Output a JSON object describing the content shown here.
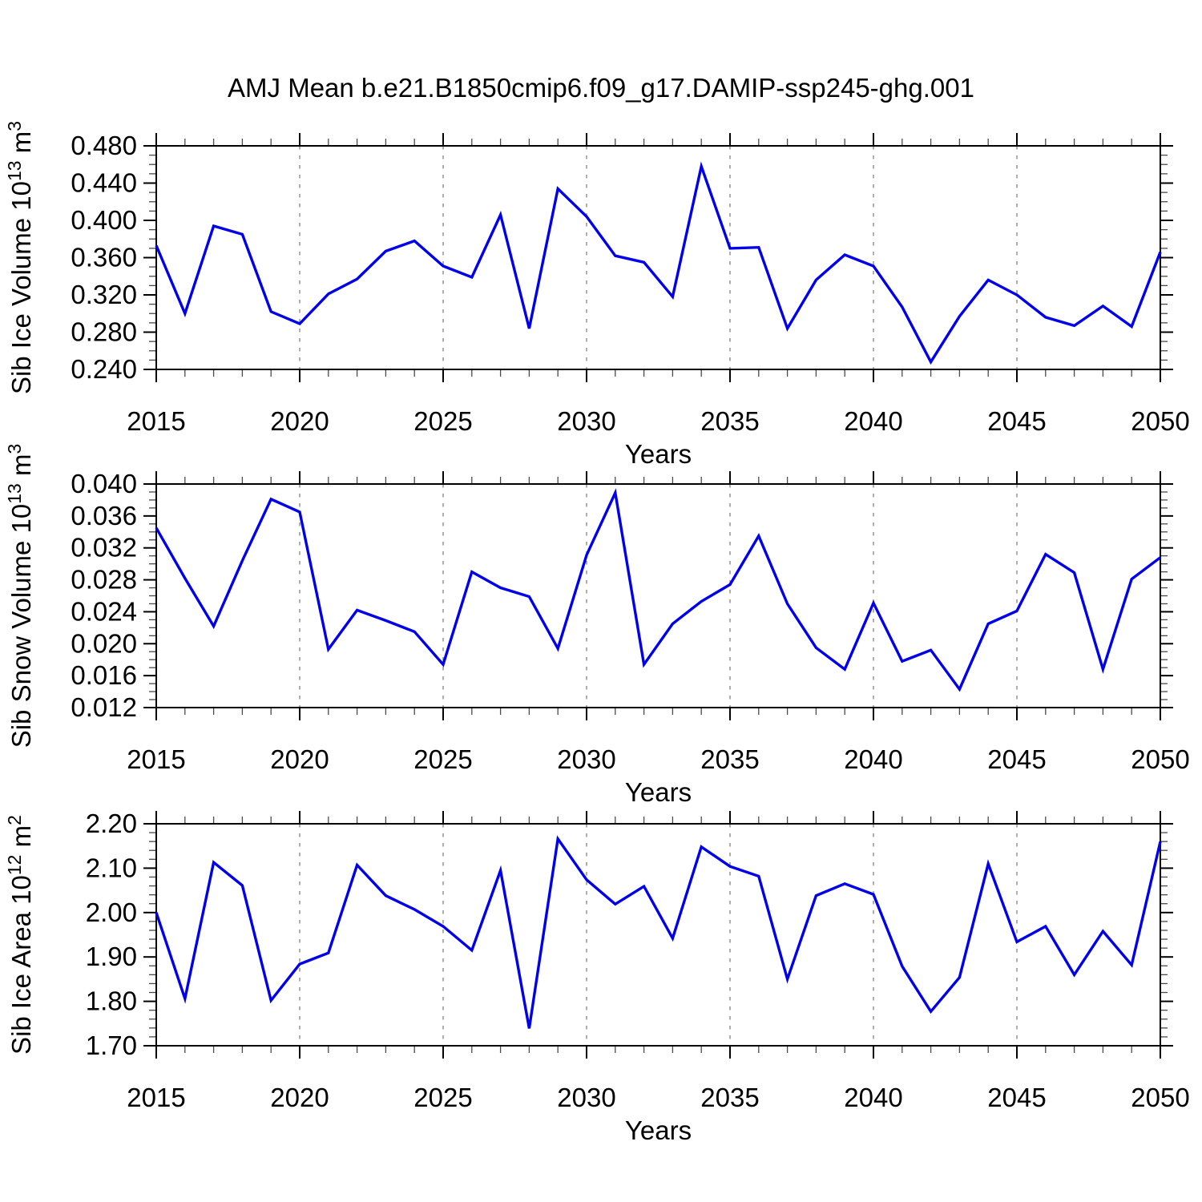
{
  "title": "AMJ Mean b.e21.B1850cmip6.f09_g17.DAMIP-ssp245-ghg.001",
  "style": {
    "line_color": "#0000ee",
    "grid_color": "#8a8a8a",
    "axis_color": "#000000",
    "background": "#ffffff"
  },
  "x_axis": {
    "label": "Years",
    "range": [
      2015,
      2050
    ],
    "major_ticks": [
      2015,
      2020,
      2025,
      2030,
      2035,
      2040,
      2045,
      2050
    ],
    "grid_years": [
      2020,
      2025,
      2030,
      2035,
      2040,
      2045
    ],
    "minor_step": 1,
    "years": [
      2015,
      2016,
      2017,
      2018,
      2019,
      2020,
      2021,
      2022,
      2023,
      2024,
      2025,
      2026,
      2027,
      2028,
      2029,
      2030,
      2031,
      2032,
      2033,
      2034,
      2035,
      2036,
      2037,
      2038,
      2039,
      2040,
      2041,
      2042,
      2043,
      2044,
      2045,
      2046,
      2047,
      2048,
      2049,
      2050
    ]
  },
  "chart_data": [
    {
      "type": "line",
      "name": "sib-ice-volume",
      "ylabel": "Sib Ice Volume 10¹³ m³",
      "ylabel_parts": [
        [
          "Sib Ice Volume 10",
          false
        ],
        [
          "13",
          true
        ],
        [
          " m",
          false
        ],
        [
          "3",
          true
        ]
      ],
      "ylim": [
        0.24,
        0.48
      ],
      "ytick_values": [
        0.24,
        0.28,
        0.32,
        0.36,
        0.4,
        0.44,
        0.48
      ],
      "ytick_labels": [
        "0.240",
        "0.280",
        "0.320",
        "0.360",
        "0.400",
        "0.440",
        "0.480"
      ],
      "y_minor_step": 0.01,
      "values": [
        0.373,
        0.3,
        0.394,
        0.385,
        0.302,
        0.289,
        0.321,
        0.337,
        0.367,
        0.378,
        0.351,
        0.339,
        0.406,
        0.284,
        0.434,
        0.404,
        0.362,
        0.355,
        0.318,
        0.458,
        0.37,
        0.371,
        0.284,
        0.336,
        0.363,
        0.351,
        0.307,
        0.248,
        0.297,
        0.336,
        0.32,
        0.296,
        0.287,
        0.308,
        0.286,
        0.366
      ]
    },
    {
      "type": "line",
      "name": "sib-snow-volume",
      "ylabel": "Sib Snow Volume 10¹³ m³",
      "ylabel_parts": [
        [
          "Sib Snow Volume 10",
          false
        ],
        [
          "13",
          true
        ],
        [
          " m",
          false
        ],
        [
          "3",
          true
        ]
      ],
      "ylim": [
        0.012,
        0.04
      ],
      "ytick_values": [
        0.012,
        0.016,
        0.02,
        0.024,
        0.028,
        0.032,
        0.036,
        0.04
      ],
      "ytick_labels": [
        "0.012",
        "0.016",
        "0.020",
        "0.024",
        "0.028",
        "0.032",
        "0.036",
        "0.040"
      ],
      "y_minor_step": 0.001,
      "values": [
        0.0345,
        0.0282,
        0.0222,
        0.0304,
        0.0381,
        0.0365,
        0.0193,
        0.0242,
        0.0229,
        0.0215,
        0.0174,
        0.029,
        0.027,
        0.0259,
        0.0194,
        0.0311,
        0.0389,
        0.0174,
        0.0225,
        0.0253,
        0.0274,
        0.0335,
        0.025,
        0.0195,
        0.0168,
        0.0251,
        0.0178,
        0.0192,
        0.0143,
        0.0225,
        0.0241,
        0.0312,
        0.0289,
        0.0168,
        0.0281,
        0.0308
      ]
    },
    {
      "type": "line",
      "name": "sib-ice-area",
      "ylabel": "Sib Ice Area 10¹² m²",
      "ylabel_parts": [
        [
          "Sib Ice Area 10",
          false
        ],
        [
          "12",
          true
        ],
        [
          " m",
          false
        ],
        [
          "2",
          true
        ]
      ],
      "ylim": [
        1.7,
        2.2
      ],
      "ytick_values": [
        1.7,
        1.8,
        1.9,
        2.0,
        2.1,
        2.2
      ],
      "ytick_labels": [
        "1.70",
        "1.80",
        "1.90",
        "2.00",
        "2.10",
        "2.20"
      ],
      "y_minor_step": 0.02,
      "values": [
        2.0,
        1.806,
        2.113,
        2.061,
        1.802,
        1.884,
        1.909,
        2.107,
        2.038,
        2.007,
        1.969,
        1.915,
        2.095,
        1.739,
        2.166,
        2.074,
        2.019,
        2.059,
        1.942,
        2.148,
        2.104,
        2.082,
        1.85,
        2.038,
        2.065,
        2.041,
        1.879,
        1.777,
        1.854,
        2.11,
        1.934,
        1.969,
        1.86,
        1.958,
        1.882,
        2.16
      ]
    }
  ]
}
